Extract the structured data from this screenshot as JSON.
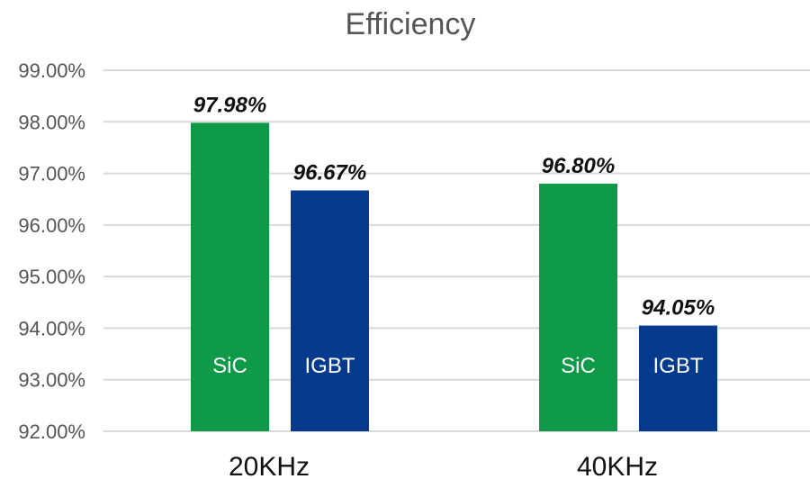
{
  "chart_data": {
    "type": "bar",
    "title": "Efficiency",
    "categories": [
      "20KHz",
      "40KHz"
    ],
    "series": [
      {
        "name": "SiC",
        "values": [
          97.98,
          96.8
        ],
        "color": "#0e9a48"
      },
      {
        "name": "IGBT",
        "values": [
          96.67,
          94.05
        ],
        "color": "#063a8c"
      }
    ],
    "data_labels": [
      [
        "97.98%",
        "96.67%"
      ],
      [
        "96.80%",
        "94.05%"
      ]
    ],
    "ylim": [
      92,
      99
    ],
    "yticks": [
      "92.00%",
      "93.00%",
      "94.00%",
      "95.00%",
      "96.00%",
      "97.00%",
      "98.00%",
      "99.00%"
    ],
    "grid": true,
    "legend": "none (series names drawn inside bars)"
  }
}
